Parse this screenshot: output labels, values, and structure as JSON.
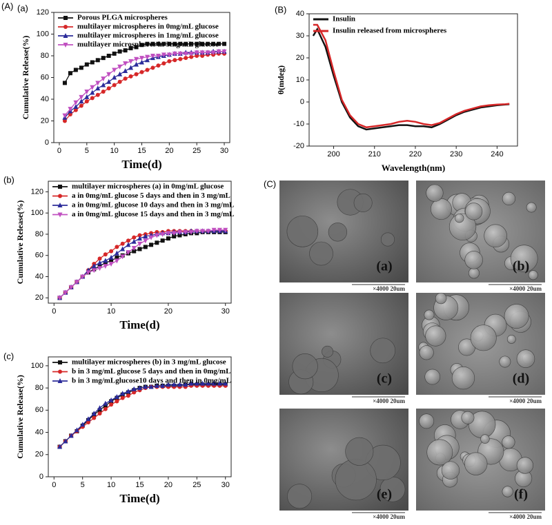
{
  "panel_labels": [
    "(A)",
    "(C)"
  ],
  "chart_data": [
    {
      "type": "line",
      "panel": "(a)",
      "xlabel": "Time(d)",
      "ylabel": "Cumulative Release(%)",
      "x": [
        1,
        2,
        3,
        4,
        5,
        6,
        7,
        8,
        9,
        10,
        11,
        12,
        13,
        14,
        15,
        16,
        17,
        18,
        19,
        20,
        21,
        22,
        23,
        24,
        25,
        26,
        27,
        28,
        29,
        30
      ],
      "xlim": [
        -1,
        31
      ],
      "xticks": [
        0,
        5,
        10,
        15,
        20,
        25,
        30
      ],
      "ylim": [
        0,
        120
      ],
      "yticks": [
        0,
        20,
        40,
        60,
        80,
        100,
        120
      ],
      "legend": "upper left",
      "series": [
        {
          "name": "Porous PLGA microspheres",
          "color": "#111111",
          "marker": "square",
          "values": [
            55,
            64,
            67,
            69,
            72,
            74,
            76,
            78,
            80,
            82,
            84,
            85,
            87,
            88,
            90,
            91,
            91,
            91,
            91,
            91,
            91,
            91,
            91,
            91,
            91,
            91,
            91,
            91,
            91,
            91
          ]
        },
        {
          "name": "multilayer microspheres in 0mg/mL glucose",
          "color": "#d62728",
          "marker": "circle",
          "values": [
            20,
            26,
            30,
            34,
            38,
            41,
            44,
            47,
            50,
            53,
            56,
            59,
            61,
            63,
            65,
            67,
            69,
            71,
            73,
            75,
            76,
            77,
            78,
            79,
            80,
            80,
            81,
            81,
            82,
            82
          ]
        },
        {
          "name": "multilayer microspheres in 1mg/mL glucose",
          "color": "#2b2b9a",
          "marker": "triangle",
          "values": [
            23,
            29,
            33,
            38,
            42,
            46,
            50,
            53,
            56,
            60,
            63,
            66,
            69,
            72,
            74,
            76,
            78,
            79,
            80,
            81,
            82,
            82,
            83,
            83,
            83,
            83,
            83,
            84,
            84,
            84
          ]
        },
        {
          "name": "multilayer microspheres in 3mg/mL glucose",
          "color": "#c04fc0",
          "marker": "down",
          "values": [
            25,
            31,
            37,
            42,
            47,
            51,
            55,
            59,
            63,
            67,
            70,
            73,
            75,
            77,
            78,
            79,
            80,
            80,
            81,
            81,
            82,
            82,
            82,
            82,
            83,
            83,
            83,
            83,
            84,
            84
          ]
        }
      ]
    },
    {
      "type": "line",
      "panel": "(B)",
      "xlabel": "Wavelength(nm)",
      "ylabel": "θ(mdeg)",
      "x": [
        195,
        196,
        198,
        200,
        202,
        204,
        206,
        208,
        210,
        212,
        214,
        216,
        218,
        220,
        222,
        224,
        226,
        228,
        230,
        232,
        234,
        236,
        238,
        240,
        242,
        243
      ],
      "xlim": [
        194,
        245
      ],
      "xticks": [
        200,
        210,
        220,
        230,
        240
      ],
      "ylim": [
        -20,
        40
      ],
      "yticks": [
        -20,
        -10,
        0,
        10,
        20,
        30,
        40
      ],
      "legend": "upper left",
      "series": [
        {
          "name": "Insulin",
          "color": "#111111",
          "values": [
            30,
            33,
            25,
            12,
            0,
            -7,
            -11,
            -12.5,
            -12,
            -11.5,
            -11,
            -10.5,
            -10.5,
            -11,
            -11,
            -11.5,
            -10,
            -8,
            -6,
            -4.5,
            -3.5,
            -2.5,
            -2,
            -1.5,
            -1.2,
            -1
          ]
        },
        {
          "name": "Insulin  released from microspheres",
          "color": "#d62728",
          "values": [
            35,
            35,
            28,
            14,
            1,
            -6,
            -10,
            -11.5,
            -11,
            -10.5,
            -10,
            -9,
            -8.5,
            -9,
            -10,
            -10.5,
            -9.5,
            -7.5,
            -5.5,
            -4,
            -3,
            -2,
            -1.5,
            -1.2,
            -1,
            -0.8
          ]
        }
      ]
    },
    {
      "type": "line",
      "panel": "(b)",
      "xlabel": "Time(d)",
      "ylabel": "Cumulative Release(%)",
      "x": [
        1,
        2,
        3,
        4,
        5,
        6,
        7,
        8,
        9,
        10,
        11,
        12,
        13,
        14,
        15,
        16,
        17,
        18,
        19,
        20,
        21,
        22,
        23,
        24,
        25,
        26,
        27,
        28,
        29,
        30
      ],
      "xlim": [
        -1,
        31
      ],
      "xticks": [
        0,
        10,
        20,
        30
      ],
      "ylim": [
        15,
        130
      ],
      "yticks": [
        20,
        40,
        60,
        80,
        100,
        120
      ],
      "legend": "upper left",
      "series": [
        {
          "name": "multilayer microspheres (a) in 0mg/mL glucose",
          "color": "#111111",
          "marker": "square",
          "values": [
            20,
            25,
            30,
            35,
            40,
            44,
            47,
            50,
            53,
            55,
            58,
            60,
            62,
            64,
            66,
            68,
            70,
            72,
            74,
            76,
            78,
            79,
            80,
            81,
            81,
            82,
            82,
            82,
            82,
            82
          ]
        },
        {
          "name": "a in 0mg/mL glucose 5 days and then in 3 mg/mL",
          "color": "#d62728",
          "marker": "circle",
          "values": [
            20,
            25,
            30,
            35,
            40,
            46,
            52,
            57,
            61,
            64,
            68,
            71,
            74,
            77,
            79,
            80,
            81,
            82,
            82,
            83,
            83,
            83,
            83,
            83,
            83,
            83,
            83,
            83,
            83,
            83
          ]
        },
        {
          "name": "a in 0mg/mL glucose 10 days and then in 3 mg/mL",
          "color": "#2b2b9a",
          "marker": "triangle",
          "values": [
            20,
            25,
            30,
            35,
            40,
            46,
            50,
            53,
            55,
            58,
            62,
            66,
            70,
            73,
            76,
            78,
            79,
            80,
            81,
            81,
            82,
            82,
            82,
            83,
            83,
            83,
            83,
            83,
            83,
            83
          ]
        },
        {
          "name": "a in 0mg/mL glucose 15 days and then in 3 mg/mL",
          "color": "#c04fc0",
          "marker": "down",
          "values": [
            20,
            25,
            30,
            35,
            40,
            44,
            46,
            48,
            50,
            52,
            55,
            59,
            63,
            67,
            71,
            74,
            77,
            79,
            80,
            81,
            81,
            82,
            82,
            82,
            83,
            83,
            83,
            84,
            84,
            84
          ]
        }
      ]
    },
    {
      "type": "line",
      "panel": "(c)",
      "xlabel": "Time(d)",
      "ylabel": "Cumulative Release(%)",
      "x": [
        1,
        2,
        3,
        4,
        5,
        6,
        7,
        8,
        9,
        10,
        11,
        12,
        13,
        14,
        15,
        16,
        17,
        18,
        19,
        20,
        21,
        22,
        23,
        24,
        25,
        26,
        27,
        28,
        29,
        30
      ],
      "xlim": [
        -1,
        31
      ],
      "xticks": [
        0,
        5,
        10,
        15,
        20,
        25,
        30
      ],
      "ylim": [
        0,
        108
      ],
      "yticks": [
        0,
        20,
        40,
        60,
        80,
        100
      ],
      "legend": "upper left",
      "series": [
        {
          "name": "multilayer microspheres (b) in 3 mg/mL glucose",
          "color": "#111111",
          "marker": "square",
          "values": [
            27,
            32,
            37,
            41,
            46,
            51,
            56,
            60,
            64,
            68,
            71,
            74,
            76,
            78,
            80,
            81,
            81,
            82,
            82,
            82,
            82,
            82,
            83,
            83,
            83,
            83,
            83,
            83,
            83,
            83
          ]
        },
        {
          "name": "b in 3 mg/mL glucose 5 days and then in 0mg/mL",
          "color": "#d62728",
          "marker": "circle",
          "values": [
            27,
            32,
            37,
            41,
            45,
            49,
            53,
            57,
            61,
            65,
            68,
            71,
            73,
            76,
            78,
            80,
            81,
            81,
            81,
            81,
            81,
            81,
            81,
            82,
            82,
            82,
            82,
            82,
            82,
            82
          ]
        },
        {
          "name": "b in 3 mg/mLglucose10 days and then in 0mg/mL",
          "color": "#2b2b9a",
          "marker": "triangle",
          "values": [
            27,
            32,
            37,
            42,
            47,
            52,
            57,
            62,
            66,
            69,
            72,
            75,
            77,
            79,
            80,
            81,
            81,
            82,
            82,
            83,
            83,
            83,
            83,
            84,
            84,
            84,
            84,
            84,
            84,
            84
          ]
        }
      ]
    }
  ],
  "micrographs": [
    {
      "label": "(a)",
      "scale": "×4000  20um"
    },
    {
      "label": "(b)",
      "scale": "×4000  20um"
    },
    {
      "label": "(c)",
      "scale": "×4000  20um"
    },
    {
      "label": "(d)",
      "scale": "×4000  20um"
    },
    {
      "label": "(e)",
      "scale": "×4000  20um"
    },
    {
      "label": "(f)",
      "scale": "×4000  20um"
    }
  ]
}
